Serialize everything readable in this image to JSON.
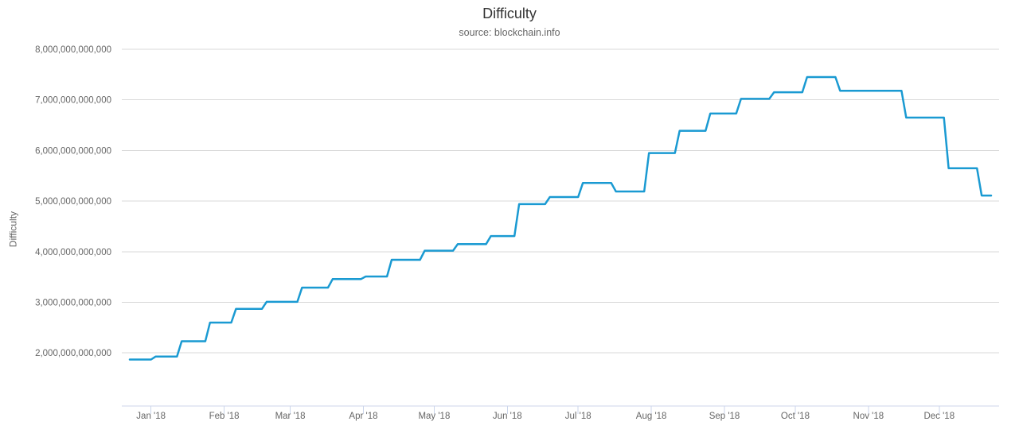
{
  "page_title": "Difficulty",
  "colors": {
    "line": "#1a9ad2",
    "grid": "#d8d8d8",
    "axis_line": "#ccd6eb",
    "title_text": "#333333",
    "label_text": "#666666",
    "background": "#ffffff"
  },
  "chart_data": {
    "type": "line",
    "line_style": "step",
    "title": "Difficulty",
    "subtitle": "source: blockchain.info",
    "xlabel": "",
    "ylabel": "Difficulty",
    "legend": false,
    "grid": true,
    "x_axis": {
      "start_date": "2017-12-23",
      "end_date": "2018-12-23",
      "span_days": 365,
      "ticks": [
        {
          "label": "Jan '18",
          "day": 9
        },
        {
          "label": "Feb '18",
          "day": 40
        },
        {
          "label": "Mar '18",
          "day": 68
        },
        {
          "label": "Apr '18",
          "day": 99
        },
        {
          "label": "May '18",
          "day": 129
        },
        {
          "label": "Jun '18",
          "day": 160
        },
        {
          "label": "Jul '18",
          "day": 190
        },
        {
          "label": "Aug '18",
          "day": 221
        },
        {
          "label": "Sep '18",
          "day": 252
        },
        {
          "label": "Oct '18",
          "day": 282
        },
        {
          "label": "Nov '18",
          "day": 313
        },
        {
          "label": "Dec '18",
          "day": 343
        }
      ]
    },
    "y_axis": {
      "min_trillions": 0.95,
      "max_trillions": 8,
      "ticks": [
        {
          "label": "2,000,000,000,000",
          "value_trillions": 2
        },
        {
          "label": "3,000,000,000,000",
          "value_trillions": 3
        },
        {
          "label": "4,000,000,000,000",
          "value_trillions": 4
        },
        {
          "label": "5,000,000,000,000",
          "value_trillions": 5
        },
        {
          "label": "6,000,000,000,000",
          "value_trillions": 6
        },
        {
          "label": "7,000,000,000,000",
          "value_trillions": 7
        },
        {
          "label": "8,000,000,000,000",
          "value_trillions": 8
        }
      ]
    },
    "series": [
      {
        "name": "Difficulty",
        "color": "#1a9ad2",
        "interpolation_note": "each step value holds from its day until the next step",
        "end_day": 365,
        "steps": [
          {
            "date": "2017-12-23",
            "day": 0,
            "value_trillions": 1.87
          },
          {
            "date": "2018-01-02",
            "day": 10,
            "value_trillions": 1.93
          },
          {
            "date": "2018-01-13",
            "day": 21,
            "value_trillions": 2.23
          },
          {
            "date": "2018-01-25",
            "day": 33,
            "value_trillions": 2.6
          },
          {
            "date": "2018-02-05",
            "day": 44,
            "value_trillions": 2.87
          },
          {
            "date": "2018-02-18",
            "day": 57,
            "value_trillions": 3.01
          },
          {
            "date": "2018-03-05",
            "day": 72,
            "value_trillions": 3.29
          },
          {
            "date": "2018-03-18",
            "day": 85,
            "value_trillions": 3.46
          },
          {
            "date": "2018-04-01",
            "day": 99,
            "value_trillions": 3.51
          },
          {
            "date": "2018-04-12",
            "day": 110,
            "value_trillions": 3.84
          },
          {
            "date": "2018-04-26",
            "day": 124,
            "value_trillions": 4.02
          },
          {
            "date": "2018-05-10",
            "day": 138,
            "value_trillions": 4.15
          },
          {
            "date": "2018-05-24",
            "day": 152,
            "value_trillions": 4.31
          },
          {
            "date": "2018-06-05",
            "day": 164,
            "value_trillions": 4.94
          },
          {
            "date": "2018-06-18",
            "day": 177,
            "value_trillions": 5.08
          },
          {
            "date": "2018-07-02",
            "day": 191,
            "value_trillions": 5.36
          },
          {
            "date": "2018-07-16",
            "day": 205,
            "value_trillions": 5.19
          },
          {
            "date": "2018-07-30",
            "day": 219,
            "value_trillions": 5.95
          },
          {
            "date": "2018-08-12",
            "day": 232,
            "value_trillions": 6.39
          },
          {
            "date": "2018-08-25",
            "day": 245,
            "value_trillions": 6.73
          },
          {
            "date": "2018-09-07",
            "day": 258,
            "value_trillions": 7.02
          },
          {
            "date": "2018-09-21",
            "day": 272,
            "value_trillions": 7.15
          },
          {
            "date": "2018-10-05",
            "day": 286,
            "value_trillions": 7.45
          },
          {
            "date": "2018-10-19",
            "day": 300,
            "value_trillions": 7.18
          },
          {
            "date": "2018-11-16",
            "day": 328,
            "value_trillions": 6.65
          },
          {
            "date": "2018-12-04",
            "day": 346,
            "value_trillions": 5.65
          },
          {
            "date": "2018-12-18",
            "day": 360,
            "value_trillions": 5.11
          }
        ]
      }
    ]
  }
}
